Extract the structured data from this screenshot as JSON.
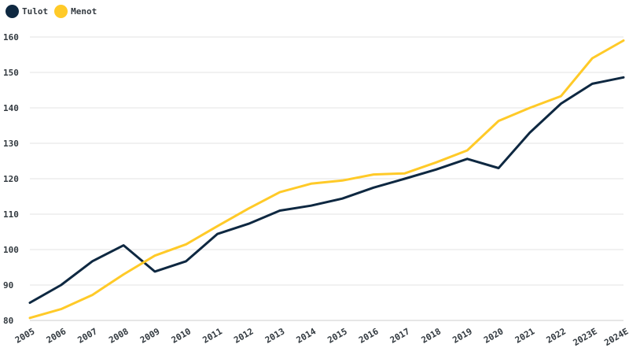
{
  "chart_data": {
    "type": "line",
    "title": "",
    "xlabel": "",
    "ylabel": "",
    "categories": [
      "2005",
      "2006",
      "2007",
      "2008",
      "2009",
      "2010",
      "2011",
      "2012",
      "2013",
      "2014",
      "2015",
      "2016",
      "2017",
      "2018",
      "2019",
      "2020",
      "2021",
      "2022",
      "2023E",
      "2024E"
    ],
    "ylim": [
      80,
      160
    ],
    "yticks": [
      80,
      90,
      100,
      110,
      120,
      130,
      140,
      150,
      160
    ],
    "grid": "horizontal",
    "legend_position": "top-left",
    "series": [
      {
        "name": "Tulot",
        "color": "#0e2841",
        "values": [
          85.0,
          90.0,
          96.7,
          101.2,
          93.8,
          96.7,
          104.4,
          107.3,
          111.0,
          112.4,
          114.4,
          117.5,
          120.0,
          122.6,
          125.6,
          123.0,
          133.0,
          141.2,
          146.8,
          148.6
        ]
      },
      {
        "name": "Menot",
        "color": "#ffca28",
        "values": [
          80.7,
          83.2,
          87.2,
          93.0,
          98.3,
          101.5,
          106.6,
          111.6,
          116.2,
          118.6,
          119.5,
          121.2,
          121.5,
          124.6,
          128.0,
          136.3,
          140.0,
          143.3,
          154.0,
          159.0
        ]
      }
    ]
  }
}
